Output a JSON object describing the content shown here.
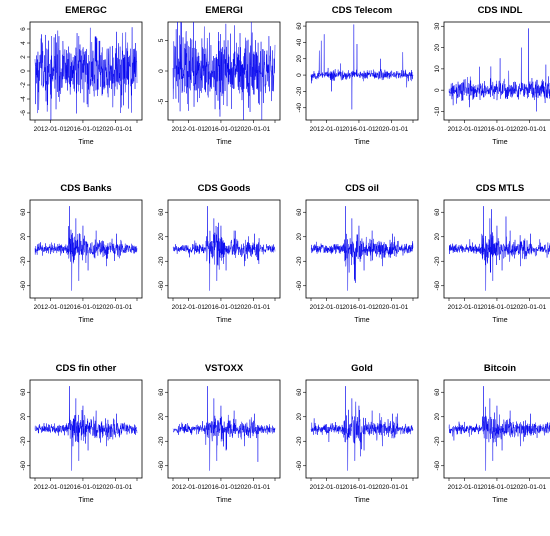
{
  "chart_data": [
    {
      "type": "line",
      "title": "EMERGC",
      "xlabel": "Time",
      "ylabel": "",
      "xticks": [
        "2012-01-01",
        "2016-01-01",
        "2020-01-01"
      ],
      "yticks": [
        -6,
        -4,
        -2,
        0,
        2,
        4,
        6
      ],
      "ylim": [
        -7,
        7
      ],
      "series": [
        {
          "color": "#0000ee",
          "pattern": "noise",
          "amplitude": 2.2,
          "spikes": [
            [
              0.12,
              -5.8
            ],
            [
              0.16,
              5.0
            ],
            [
              0.8,
              5.6
            ],
            [
              0.84,
              -6.0
            ],
            [
              0.48,
              -4.5
            ]
          ]
        }
      ]
    },
    {
      "type": "line",
      "title": "EMERGI",
      "xlabel": "Time",
      "ylabel": "",
      "xticks": [
        "2012-01-01",
        "2016-01-01",
        "2020-01-01"
      ],
      "yticks": [
        -5,
        0,
        5
      ],
      "ylim": [
        -8,
        8
      ],
      "series": [
        {
          "color": "#0000ee",
          "pattern": "noise",
          "amplitude": 2.5,
          "spikes": [
            [
              0.15,
              -6.5
            ],
            [
              0.13,
              6.5
            ],
            [
              0.74,
              -6.0
            ],
            [
              0.5,
              5.0
            ],
            [
              0.85,
              -5.5
            ]
          ]
        }
      ]
    },
    {
      "type": "line",
      "title": "CDS Telecom",
      "xlabel": "Time",
      "ylabel": "",
      "xticks": [
        "2012-01-01",
        "2016-01-01",
        "2020-01-01"
      ],
      "yticks": [
        -40,
        -20,
        0,
        20,
        40,
        60
      ],
      "ylim": [
        -55,
        65
      ],
      "series": [
        {
          "color": "#0000ee",
          "pattern": "noise",
          "amplitude": 2.5,
          "spikes": [
            [
              0.08,
              30.0
            ],
            [
              0.1,
              42.0
            ],
            [
              0.13,
              50.0
            ],
            [
              0.42,
              62.0
            ],
            [
              0.4,
              -42.0
            ],
            [
              0.45,
              38.0
            ],
            [
              0.2,
              -20.0
            ],
            [
              0.68,
              20.0
            ],
            [
              0.9,
              28.0
            ]
          ]
        }
      ]
    },
    {
      "type": "line",
      "title": "CDS INDL",
      "xlabel": "Time",
      "ylabel": "",
      "xticks": [
        "2012-01-01",
        "2016-01-01",
        "2020-01-01"
      ],
      "yticks": [
        -10,
        0,
        10,
        20,
        30
      ],
      "ylim": [
        -14,
        32
      ],
      "series": [
        {
          "color": "#0000ee",
          "pattern": "noise",
          "amplitude": 2.2,
          "spikes": [
            [
              0.78,
              29.0
            ],
            [
              0.71,
              20.0
            ],
            [
              0.5,
              15.0
            ],
            [
              0.3,
              11.0
            ],
            [
              0.86,
              -10.0
            ],
            [
              0.2,
              -8.0
            ],
            [
              0.95,
              12.0
            ]
          ]
        }
      ]
    },
    {
      "type": "line",
      "title": "CDS Banks",
      "xlabel": "Time",
      "ylabel": "",
      "xticks": [
        "2012-01-01",
        "2016-01-01",
        "2020-01-01"
      ],
      "yticks": [
        -60,
        -20,
        20,
        60
      ],
      "ylim": [
        -80,
        80
      ],
      "series": [
        {
          "color": "#0000ee",
          "pattern": "cluster",
          "amplitude": 4.0,
          "spikes": [
            [
              0.34,
              70.0
            ],
            [
              0.36,
              -68.0
            ],
            [
              0.4,
              50.0
            ],
            [
              0.43,
              -52.0
            ],
            [
              0.47,
              38.0
            ],
            [
              0.52,
              -35.0
            ],
            [
              0.6,
              30.0
            ],
            [
              0.7,
              -28.0
            ],
            [
              0.8,
              25.0
            ]
          ]
        }
      ]
    },
    {
      "type": "line",
      "title": "CDS Goods",
      "xlabel": "Time",
      "ylabel": "",
      "xticks": [
        "2012-01-01",
        "2016-01-01",
        "2020-01-01"
      ],
      "yticks": [
        -60,
        -20,
        20,
        60
      ],
      "ylim": [
        -80,
        80
      ],
      "series": [
        {
          "color": "#0000ee",
          "pattern": "cluster",
          "amplitude": 4.0,
          "spikes": [
            [
              0.34,
              70.0
            ],
            [
              0.36,
              -68.0
            ],
            [
              0.4,
              50.0
            ],
            [
              0.43,
              -52.0
            ],
            [
              0.47,
              38.0
            ],
            [
              0.52,
              -35.0
            ],
            [
              0.6,
              30.0
            ],
            [
              0.7,
              -28.0
            ],
            [
              0.8,
              25.0
            ]
          ]
        }
      ]
    },
    {
      "type": "line",
      "title": "CDS oil",
      "xlabel": "Time",
      "ylabel": "",
      "xticks": [
        "2012-01-01",
        "2016-01-01",
        "2020-01-01"
      ],
      "yticks": [
        -60,
        -20,
        20,
        60
      ],
      "ylim": [
        -80,
        80
      ],
      "series": [
        {
          "color": "#0000ee",
          "pattern": "cluster",
          "amplitude": 4.0,
          "spikes": [
            [
              0.34,
              70.0
            ],
            [
              0.36,
              -68.0
            ],
            [
              0.4,
              50.0
            ],
            [
              0.43,
              -52.0
            ],
            [
              0.47,
              38.0
            ],
            [
              0.52,
              -35.0
            ],
            [
              0.6,
              30.0
            ],
            [
              0.7,
              -28.0
            ],
            [
              0.8,
              25.0
            ]
          ]
        }
      ]
    },
    {
      "type": "line",
      "title": "CDS MTLS",
      "xlabel": "Time",
      "ylabel": "",
      "xticks": [
        "2012-01-01",
        "2016-01-01",
        "2020-01-01"
      ],
      "yticks": [
        -60,
        -20,
        20,
        60
      ],
      "ylim": [
        -80,
        80
      ],
      "series": [
        {
          "color": "#0000ee",
          "pattern": "cluster",
          "amplitude": 4.0,
          "spikes": [
            [
              0.34,
              70.0
            ],
            [
              0.36,
              -68.0
            ],
            [
              0.4,
              50.0
            ],
            [
              0.43,
              -52.0
            ],
            [
              0.47,
              38.0
            ],
            [
              0.52,
              -35.0
            ],
            [
              0.6,
              30.0
            ],
            [
              0.7,
              -28.0
            ],
            [
              0.8,
              25.0
            ]
          ]
        }
      ]
    },
    {
      "type": "line",
      "title": "CDS fin other",
      "xlabel": "Time",
      "ylabel": "",
      "xticks": [
        "2012-01-01",
        "2016-01-01",
        "2020-01-01"
      ],
      "yticks": [
        -60,
        -20,
        20,
        60
      ],
      "ylim": [
        -80,
        80
      ],
      "series": [
        {
          "color": "#0000ee",
          "pattern": "cluster",
          "amplitude": 4.0,
          "spikes": [
            [
              0.34,
              70.0
            ],
            [
              0.36,
              -68.0
            ],
            [
              0.4,
              50.0
            ],
            [
              0.43,
              -52.0
            ],
            [
              0.47,
              38.0
            ],
            [
              0.52,
              -35.0
            ],
            [
              0.6,
              30.0
            ],
            [
              0.7,
              -28.0
            ],
            [
              0.8,
              25.0
            ]
          ]
        }
      ]
    },
    {
      "type": "line",
      "title": "VSTOXX",
      "xlabel": "Time",
      "ylabel": "",
      "xticks": [
        "2012-01-01",
        "2016-01-01",
        "2020-01-01"
      ],
      "yticks": [
        -60,
        -20,
        20,
        60
      ],
      "ylim": [
        -80,
        80
      ],
      "series": [
        {
          "color": "#0000ee",
          "pattern": "cluster",
          "amplitude": 4.0,
          "spikes": [
            [
              0.34,
              70.0
            ],
            [
              0.36,
              -68.0
            ],
            [
              0.4,
              50.0
            ],
            [
              0.43,
              -52.0
            ],
            [
              0.47,
              38.0
            ],
            [
              0.52,
              -35.0
            ],
            [
              0.6,
              30.0
            ],
            [
              0.7,
              -28.0
            ],
            [
              0.8,
              25.0
            ]
          ]
        }
      ]
    },
    {
      "type": "line",
      "title": "Gold",
      "xlabel": "Time",
      "ylabel": "",
      "xticks": [
        "2012-01-01",
        "2016-01-01",
        "2020-01-01"
      ],
      "yticks": [
        -60,
        -20,
        20,
        60
      ],
      "ylim": [
        -80,
        80
      ],
      "series": [
        {
          "color": "#0000ee",
          "pattern": "cluster",
          "amplitude": 4.0,
          "spikes": [
            [
              0.34,
              70.0
            ],
            [
              0.36,
              -68.0
            ],
            [
              0.4,
              50.0
            ],
            [
              0.43,
              -52.0
            ],
            [
              0.47,
              38.0
            ],
            [
              0.52,
              -35.0
            ],
            [
              0.6,
              30.0
            ],
            [
              0.7,
              -28.0
            ],
            [
              0.8,
              25.0
            ]
          ]
        }
      ]
    },
    {
      "type": "line",
      "title": "Bitcoin",
      "xlabel": "Time",
      "ylabel": "",
      "xticks": [
        "2012-01-01",
        "2016-01-01",
        "2020-01-01"
      ],
      "yticks": [
        -60,
        -20,
        20,
        60
      ],
      "ylim": [
        -80,
        80
      ],
      "series": [
        {
          "color": "#0000ee",
          "pattern": "cluster",
          "amplitude": 4.0,
          "spikes": [
            [
              0.34,
              70.0
            ],
            [
              0.36,
              -68.0
            ],
            [
              0.4,
              50.0
            ],
            [
              0.43,
              -52.0
            ],
            [
              0.47,
              38.0
            ],
            [
              0.52,
              -35.0
            ],
            [
              0.6,
              30.0
            ],
            [
              0.7,
              -28.0
            ],
            [
              0.8,
              25.0
            ]
          ]
        }
      ]
    }
  ]
}
